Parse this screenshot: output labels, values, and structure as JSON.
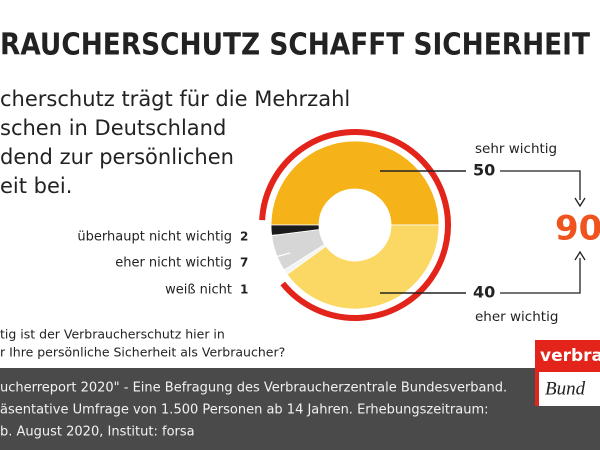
{
  "chart_data": {
    "type": "donut",
    "title": "RAUCHERSCHUTZ SCHAFFT SICHERHEIT",
    "subtitle": [
      "cherschutz trägt für die Mehrzahl",
      "schen in Deutschland",
      "dend zur persönlichen",
      "eit bei."
    ],
    "categories": [
      "sehr wichtig",
      "eher wichtig",
      "weiß nicht",
      "eher nicht wichtig",
      "überhaupt nicht wichtig"
    ],
    "values": [
      50,
      40,
      1,
      7,
      2
    ],
    "colors": [
      "#f6b319",
      "#fbd863",
      "#f4f4f4",
      "#d6d6d6",
      "#1b1b1b"
    ],
    "total": 90,
    "total_color": "#f0541e",
    "highlight_color": "#e3241b",
    "question": [
      "tig ist der Verbraucherschutz hier in",
      "r Ihre persönliche Sicherheit als Verbraucher?"
    ],
    "source": [
      "ucherreport 2020\" - Eine Befragung des Verbraucherzentrale Bundesverband.",
      "äsentative Umfrage von 1.500 Personen ab 14 Jahren. Erhebungszeitraum:",
      "b. August 2020, Institut: forsa"
    ],
    "logo": [
      "verbrauc",
      "Bund"
    ]
  }
}
